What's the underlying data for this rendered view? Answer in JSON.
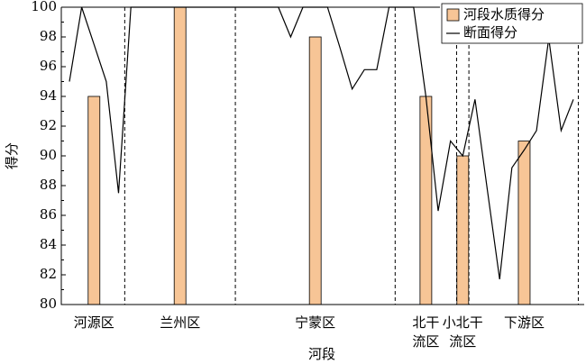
{
  "chart_data": {
    "type": "bar-line",
    "x_label": "河段",
    "y_label": "得分",
    "categories": [
      null,
      null,
      "河源区",
      null,
      null,
      null,
      null,
      null,
      null,
      "兰州区",
      null,
      null,
      null,
      null,
      null,
      null,
      null,
      null,
      null,
      null,
      "宁蒙区",
      null,
      null,
      null,
      null,
      null,
      null,
      null,
      null,
      "北干流区",
      null,
      null,
      "小北干流区",
      null,
      null,
      null,
      null,
      "下游区",
      null,
      null,
      null,
      null
    ],
    "series": [
      {
        "name": "河段水质得分",
        "type": "bar",
        "color": "#f7c596",
        "values": [
          null,
          null,
          94,
          null,
          null,
          null,
          null,
          null,
          null,
          100,
          null,
          null,
          null,
          null,
          null,
          null,
          null,
          null,
          null,
          null,
          98,
          null,
          null,
          null,
          null,
          null,
          null,
          null,
          null,
          94,
          null,
          null,
          90,
          null,
          null,
          null,
          null,
          91,
          null,
          null,
          null,
          null
        ]
      },
      {
        "name": "断面得分",
        "type": "line",
        "color": "#000000",
        "values": [
          95,
          100,
          97.5,
          95,
          87.5,
          100,
          100,
          100,
          100,
          100,
          100,
          100,
          100,
          100,
          100,
          100,
          100,
          100,
          98,
          100,
          100,
          100,
          97.3,
          94.5,
          95.8,
          95.8,
          100,
          100,
          100,
          94,
          86.3,
          91,
          90,
          93.8,
          87.7,
          81.7,
          89.2,
          90.4,
          91.7,
          97.9,
          91.7,
          93.8
        ]
      }
    ],
    "ylim": [
      80,
      100
    ],
    "yticks": [
      80,
      82,
      84,
      86,
      88,
      90,
      92,
      94,
      96,
      98,
      100
    ],
    "legend": "upper right"
  }
}
